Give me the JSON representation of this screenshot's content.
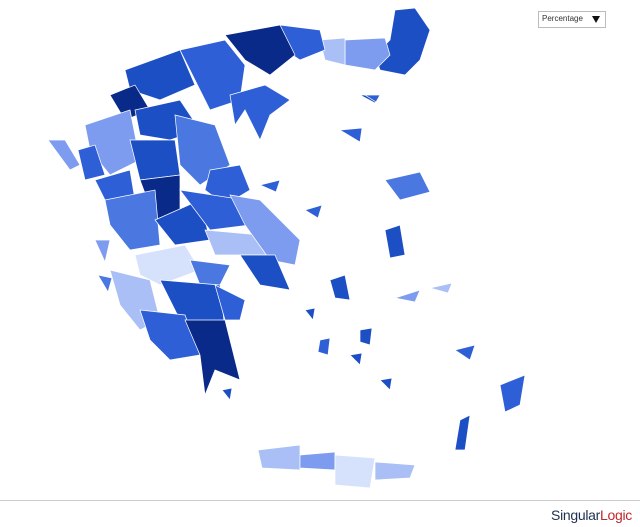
{
  "dropdown": {
    "label": "Percentage"
  },
  "footer": {
    "brand": [
      "Singular",
      "Logic"
    ]
  }
}
